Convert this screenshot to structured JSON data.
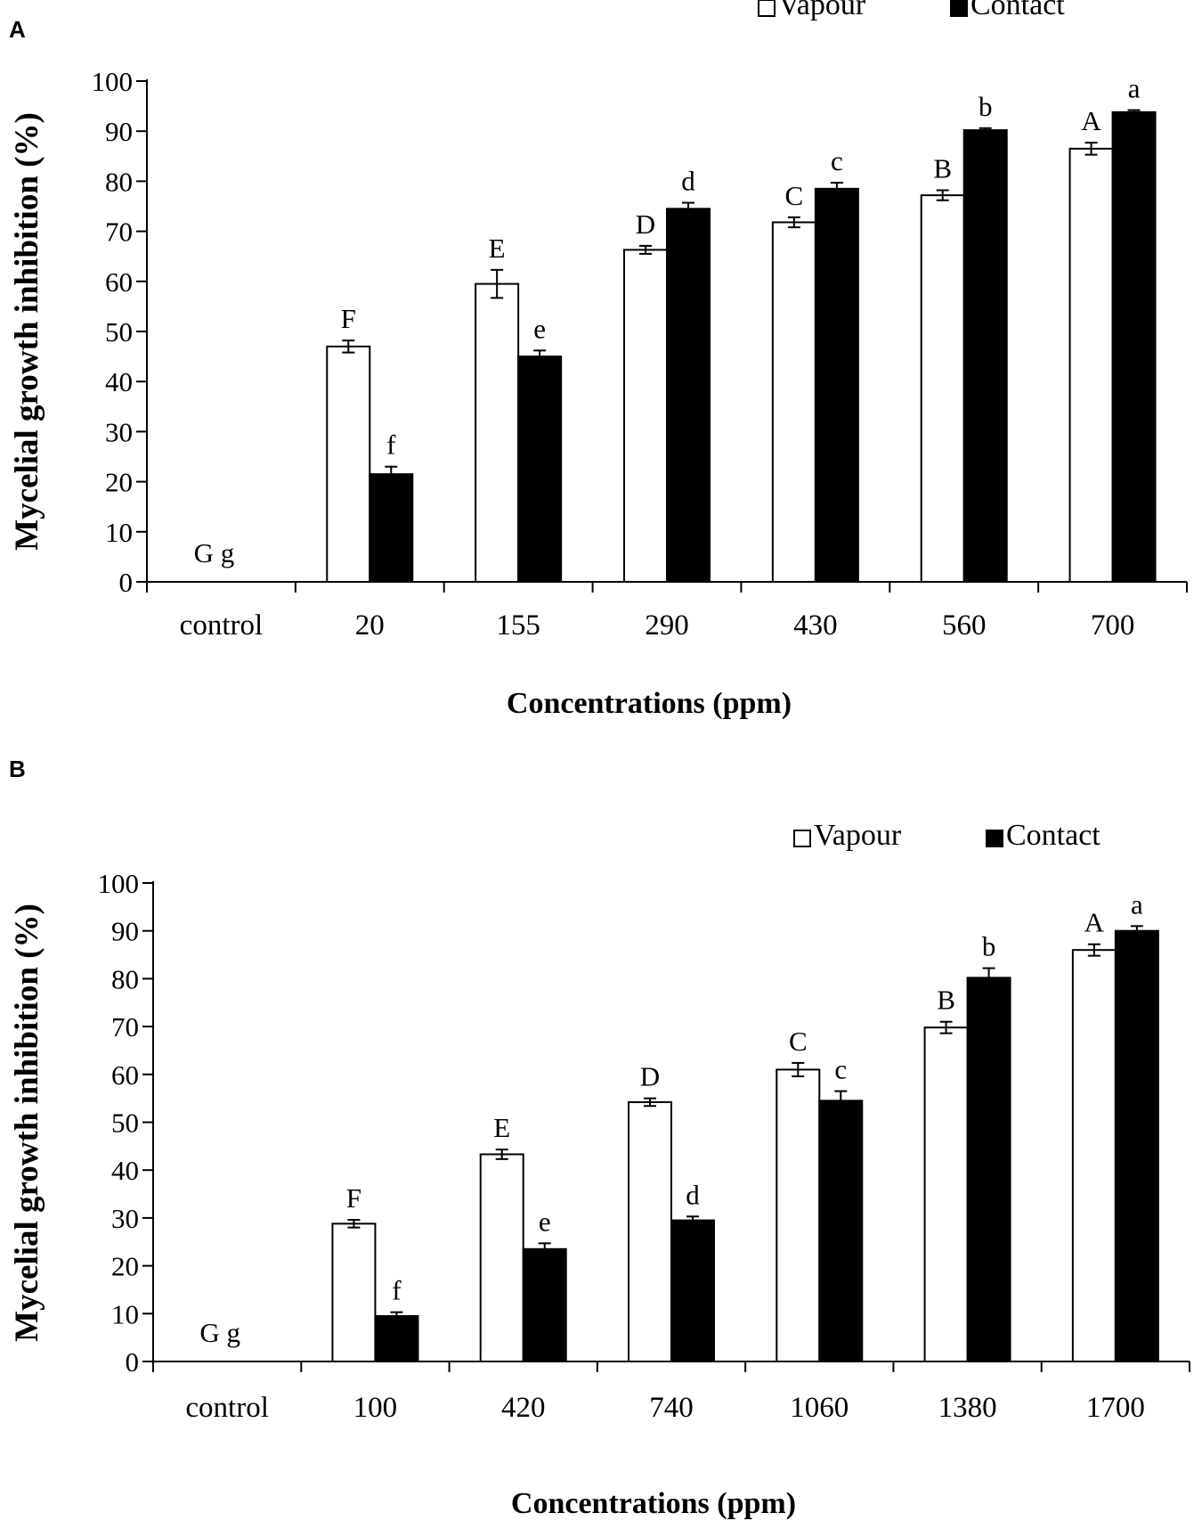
{
  "colors": {
    "vapour": "#ffffff",
    "contact": "#000000",
    "axis": "#000000"
  },
  "chart_data": [
    {
      "panel_label": "A",
      "type": "bar",
      "title": "",
      "xlabel": "Concentrations (ppm)",
      "ylabel": "Mycelial growth inhibition (%)",
      "ylim": [
        0,
        100
      ],
      "yticks": [
        "0",
        "10",
        "20",
        "30",
        "40",
        "50",
        "60",
        "70",
        "80",
        "90",
        "100"
      ],
      "categories": [
        "control",
        "20",
        "155",
        "290",
        "430",
        "560",
        "700"
      ],
      "legend": {
        "position": "top-right"
      },
      "control_letters": "G g",
      "series": [
        {
          "name": "Vapour",
          "values": [
            0,
            47,
            59.5,
            66.3,
            71.8,
            77.2,
            86.5
          ],
          "errors": [
            0,
            1.2,
            2.8,
            0.8,
            1,
            1,
            1.2
          ],
          "letters": [
            "",
            "F",
            "E",
            "D",
            "C",
            "B",
            "A"
          ]
        },
        {
          "name": "Contact",
          "values": [
            0,
            21.5,
            45,
            74.5,
            78.5,
            90.2,
            93.8
          ],
          "errors": [
            0,
            1.5,
            1.2,
            1.2,
            1.2,
            0.4,
            0.4
          ],
          "letters": [
            "",
            "f",
            "e",
            "d",
            "c",
            "b",
            "a"
          ]
        }
      ]
    },
    {
      "panel_label": "B",
      "type": "bar",
      "title": "",
      "xlabel": "Concentrations (ppm)",
      "ylabel": "Mycelial growth inhibition (%)",
      "ylim": [
        0,
        100
      ],
      "yticks": [
        "0",
        "10",
        "20",
        "30",
        "40",
        "50",
        "60",
        "70",
        "80",
        "90",
        "100"
      ],
      "categories": [
        "control",
        "100",
        "420",
        "740",
        "1060",
        "1380",
        "1700"
      ],
      "legend": {
        "position": "top-right"
      },
      "control_letters": "G g",
      "series": [
        {
          "name": "Vapour",
          "values": [
            0,
            28.8,
            43.3,
            54.2,
            61,
            69.8,
            86
          ],
          "errors": [
            0,
            0.8,
            1,
            0.8,
            1.4,
            1.2,
            1.2
          ],
          "letters": [
            "",
            "F",
            "E",
            "D",
            "C",
            "B",
            "A"
          ]
        },
        {
          "name": "Contact",
          "values": [
            0,
            9.5,
            23.5,
            29.5,
            54.5,
            80.2,
            90
          ],
          "errors": [
            0,
            0.8,
            1.2,
            0.8,
            2,
            2,
            1
          ],
          "letters": [
            "",
            "f",
            "e",
            "d",
            "c",
            "b",
            "a"
          ]
        }
      ]
    }
  ]
}
